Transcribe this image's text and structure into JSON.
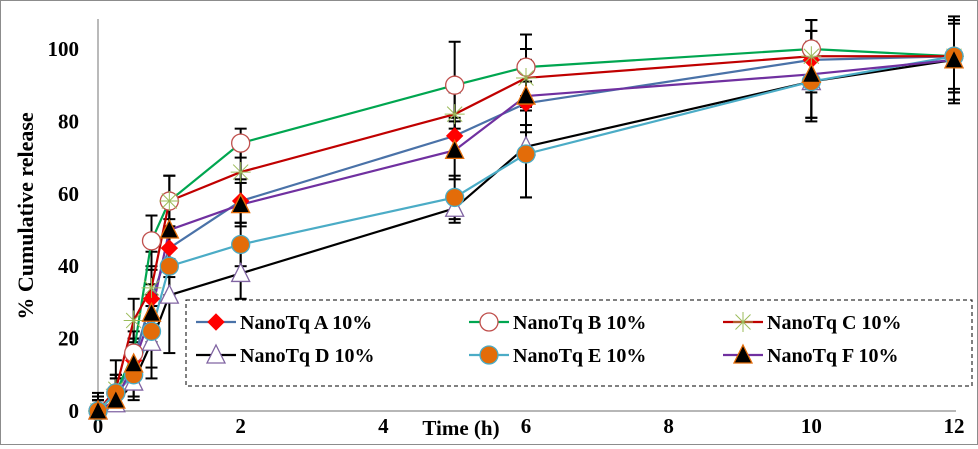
{
  "chart_data": {
    "type": "line",
    "title": "",
    "xlabel": "Time (h)",
    "ylabel": "% Cumulative release",
    "xlim": [
      0,
      12
    ],
    "ylim": [
      0,
      110
    ],
    "xticks": [
      0,
      2,
      4,
      6,
      8,
      10,
      12
    ],
    "yticks": [
      0,
      20,
      40,
      60,
      80,
      100
    ],
    "grid": false,
    "legend_position": "bottom-center-inside",
    "x": [
      0,
      0.25,
      0.5,
      0.75,
      1,
      2,
      5,
      6,
      10,
      12
    ],
    "series": [
      {
        "name": "NanoTq A 10%",
        "color": "#4a72a8",
        "marker": "diamond",
        "marker_fill": "#ff0000",
        "marker_stroke": "#ff0000",
        "values": [
          0,
          5,
          14,
          31,
          45,
          58,
          76,
          85,
          97,
          98
        ],
        "errors": [
          3,
          4,
          6,
          8,
          8,
          6,
          5,
          6,
          8,
          9
        ]
      },
      {
        "name": "NanoTq B 10%",
        "color": "#00a650",
        "marker": "circle",
        "marker_fill": "#ffffff",
        "marker_stroke": "#c0504d",
        "values": [
          0,
          5,
          16,
          47,
          58,
          74,
          90,
          95,
          100,
          98
        ],
        "errors": [
          4,
          5,
          6,
          7,
          7,
          4,
          12,
          9,
          8,
          10
        ]
      },
      {
        "name": "NanoTq C 10%",
        "color": "#c00000",
        "marker": "star",
        "marker_fill": "none",
        "marker_stroke": "#9bbb59",
        "values": [
          0,
          6,
          25,
          34,
          58,
          66,
          82,
          92,
          98,
          98
        ],
        "errors": [
          5,
          8,
          6,
          10,
          7,
          9,
          6,
          8,
          10,
          10
        ]
      },
      {
        "name": "NanoTq D 10%",
        "color": "#000000",
        "marker": "triangle",
        "marker_fill": "#ffffff",
        "marker_stroke": "#8064a2",
        "values": [
          0,
          2,
          8,
          19,
          32,
          38,
          56,
          73,
          91,
          97
        ],
        "errors": [
          3,
          4,
          5,
          10,
          16,
          7,
          4,
          14,
          11,
          11
        ]
      },
      {
        "name": "NanoTq E 10%",
        "color": "#4bacc6",
        "marker": "circle",
        "marker_fill": "#e36c09",
        "marker_stroke": "#4bacc6",
        "values": [
          0,
          5,
          10,
          22,
          40,
          46,
          59,
          71,
          91,
          98
        ],
        "errors": [
          3,
          5,
          6,
          10,
          8,
          6,
          6,
          12,
          10,
          10
        ]
      },
      {
        "name": "NanoTq F 10%",
        "color": "#7030a0",
        "marker": "triangle",
        "marker_fill": "#000000",
        "marker_stroke": "#e36c09",
        "values": [
          0,
          3,
          13,
          27,
          50,
          57,
          72,
          87,
          93,
          97
        ],
        "errors": [
          3,
          6,
          7,
          8,
          8,
          6,
          8,
          10,
          12,
          12
        ]
      }
    ]
  }
}
